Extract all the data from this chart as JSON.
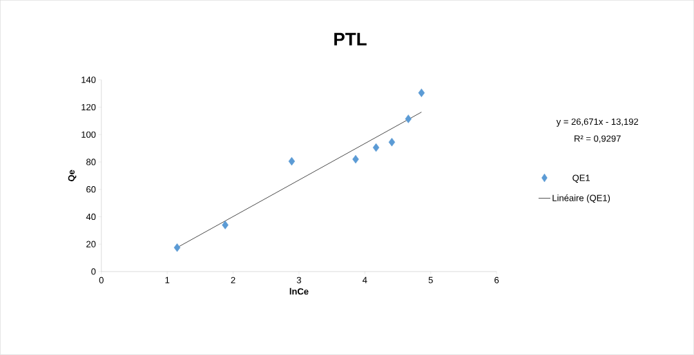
{
  "chart_data": {
    "type": "scatter",
    "title": "PTL",
    "xlabel": "lnCe",
    "ylabel": "Qe",
    "series": [
      {
        "name": "QE1",
        "type": "scatter",
        "color": "#5b9bd5",
        "marker": "diamond",
        "x": [
          1.15,
          1.88,
          2.89,
          3.86,
          4.17,
          4.41,
          4.66,
          4.86
        ],
        "values": [
          17.5,
          34,
          80.5,
          82,
          90.5,
          94.5,
          111.5,
          130.5
        ]
      },
      {
        "name": "Linéaire (QE1)",
        "type": "line",
        "color": "#000000",
        "marker": "none",
        "line_style": "solid",
        "x": [
          1.15,
          4.86
        ],
        "values": [
          17.5,
          116.4
        ]
      }
    ],
    "annotations": [
      "y = 26,671x - 13,192",
      "R² = 0,9297"
    ],
    "xlim": [
      0,
      6
    ],
    "xticks": [
      0,
      1,
      2,
      3,
      4,
      5,
      6
    ],
    "ylim": [
      0,
      140
    ],
    "yticks": [
      0,
      20,
      40,
      60,
      80,
      100,
      120,
      140
    ],
    "grid": false,
    "legend": "right"
  }
}
